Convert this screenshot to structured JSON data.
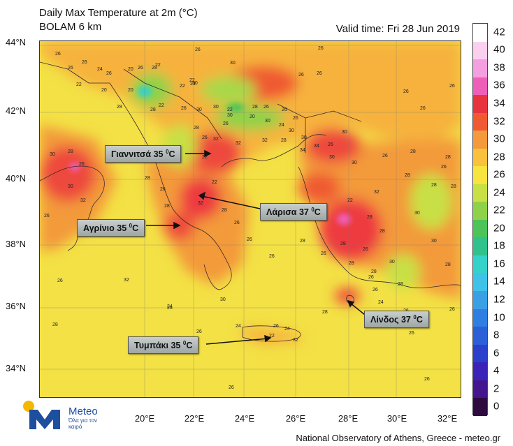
{
  "header": {
    "title_line1": "Daily Max Temperature at 2m (°C)",
    "title_line2": "BOLAM 6 km",
    "valid_time": "Valid time: Fri 28 Jun 2019"
  },
  "axes": {
    "lat_labels": [
      "44°N",
      "42°N",
      "40°N",
      "38°N",
      "36°N",
      "34°N"
    ],
    "lon_labels": [
      "20°E",
      "22°E",
      "24°E",
      "26°E",
      "28°E",
      "30°E",
      "32°E"
    ]
  },
  "colorbar": {
    "levels": [
      "42",
      "40",
      "38",
      "36",
      "34",
      "32",
      "30",
      "28",
      "26",
      "24",
      "22",
      "20",
      "18",
      "16",
      "14",
      "12",
      "10",
      "8",
      "6",
      "4",
      "2",
      "0"
    ],
    "colors": [
      "#ffffff",
      "#fbd0ef",
      "#f59ee0",
      "#ee5fb8",
      "#e8343f",
      "#f05a33",
      "#f59a3c",
      "#f9c13c",
      "#f7e43e",
      "#c8e044",
      "#8fd24a",
      "#4cc45a",
      "#2fc28c",
      "#34d2c8",
      "#3ec2e8",
      "#3aa0e6",
      "#2f7fe2",
      "#2a5fd8",
      "#2a3fcc",
      "#3a23b6",
      "#45158f",
      "#2e0a3e"
    ]
  },
  "callouts": [
    {
      "name": "Γιαννιτσά",
      "value": "35",
      "unit": "C"
    },
    {
      "name": "Λάρισα",
      "value": "37",
      "unit": "C"
    },
    {
      "name": "Αγρίνιο",
      "value": "35",
      "unit": "C"
    },
    {
      "name": "Λίνδος",
      "value": "37",
      "unit": "C"
    },
    {
      "name": "Τυμπάκι ",
      "value": "35",
      "unit": "C"
    }
  ],
  "map_values": [
    "26",
    "26",
    "26",
    "26",
    "26",
    "26",
    "30",
    "28",
    "26",
    "26",
    "22",
    "24",
    "20",
    "22",
    "22",
    "24",
    "20",
    "22",
    "26",
    "20",
    "28",
    "28",
    "22",
    "26",
    "30",
    "30",
    "30",
    "30",
    "26",
    "26",
    "26",
    "26",
    "26",
    "26",
    "28",
    "26",
    "26",
    "22",
    "20",
    "28",
    "30",
    "24",
    "30",
    "30",
    "30",
    "26",
    "32",
    "32",
    "32",
    "28",
    "34",
    "34",
    "30",
    "30",
    "26",
    "28",
    "28",
    "26",
    "28",
    "28",
    "30",
    "28",
    "26",
    "30",
    "32",
    "22",
    "22",
    "28",
    "26",
    "28",
    "32",
    "28",
    "26",
    "26",
    "26",
    "28",
    "26",
    "22",
    "28",
    "32",
    "30",
    "30",
    "28",
    "30",
    "28",
    "28",
    "26",
    "28",
    "28",
    "26",
    "32",
    "34",
    "26",
    "30",
    "24",
    "22",
    "26",
    "24",
    "32",
    "26",
    "24",
    "26",
    "26",
    "26",
    "26",
    "28",
    "26",
    "26",
    "26",
    "26",
    "28",
    "28",
    "28",
    "26"
  ],
  "logo": {
    "brand": "Meteo",
    "tagline": "Όλα για τον καιρό"
  },
  "credit": "National Observatory of Athens, Greece - meteo.gr"
}
